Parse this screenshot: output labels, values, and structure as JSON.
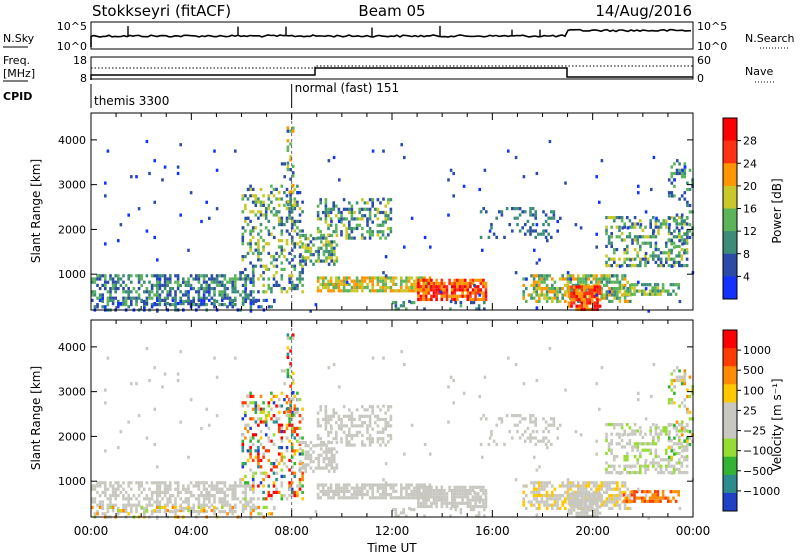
{
  "header": {
    "title": "Stokkseyri (fitACF)",
    "beam": "Beam 05",
    "date": "14/Aug/2016"
  },
  "labels": {
    "nsky": "N.Sky",
    "freq": "Freq.",
    "freq_unit": "[MHz]",
    "cpid": "CPID",
    "nsearch": "N.Search",
    "nave": "Nave",
    "nsky_ticks": [
      "10^5",
      "10^0"
    ],
    "nsearch_ticks": [
      "10^5",
      "10^0"
    ],
    "freq_ticks": [
      "18",
      "8"
    ],
    "nave_ticks": [
      "60",
      "0"
    ]
  },
  "cpid_modes": [
    {
      "label": "themis 3300",
      "start_hour": 0
    },
    {
      "label": "normal (fast) 151",
      "start_hour": 8
    }
  ],
  "chart_data": [
    {
      "type": "heatmap",
      "name": "power",
      "xlabel": "",
      "ylabel": "Slant Range [km]",
      "xlim": [
        0,
        24
      ],
      "ylim": [
        200,
        4600
      ],
      "y_ticks": [
        "1000",
        "2000",
        "3000",
        "4000"
      ],
      "colorbar_label": "Power [dB]",
      "colorbar_ticks": [
        "4",
        "8",
        "12",
        "16",
        "20",
        "24",
        "28"
      ],
      "colors": [
        "#1432ff",
        "#2a4ba6",
        "#3c8c78",
        "#5cb45a",
        "#c8c828",
        "#ff9600",
        "#ff3214",
        "#ff0000"
      ]
    },
    {
      "type": "heatmap",
      "name": "velocity",
      "xlabel": "Time UT",
      "ylabel": "Slant Range [km]",
      "xlim": [
        0,
        24
      ],
      "ylim": [
        200,
        4600
      ],
      "x_ticks": [
        "00:00",
        "04:00",
        "08:00",
        "12:00",
        "16:00",
        "20:00",
        "00:00"
      ],
      "y_ticks": [
        "1000",
        "2000",
        "3000",
        "4000"
      ],
      "colorbar_label": "Velocity [m s⁻¹]",
      "colorbar_ticks": [
        "1000",
        "500",
        "100",
        "25",
        "−25",
        "−100",
        "−500",
        "−1000"
      ],
      "colors": [
        "#2040c8",
        "#2a8c8c",
        "#32b432",
        "#96dc32",
        "#c8c8c0",
        "#c8c8c0",
        "#ffc800",
        "#ff8c00",
        "#ff3c00",
        "#ff0000"
      ]
    }
  ]
}
